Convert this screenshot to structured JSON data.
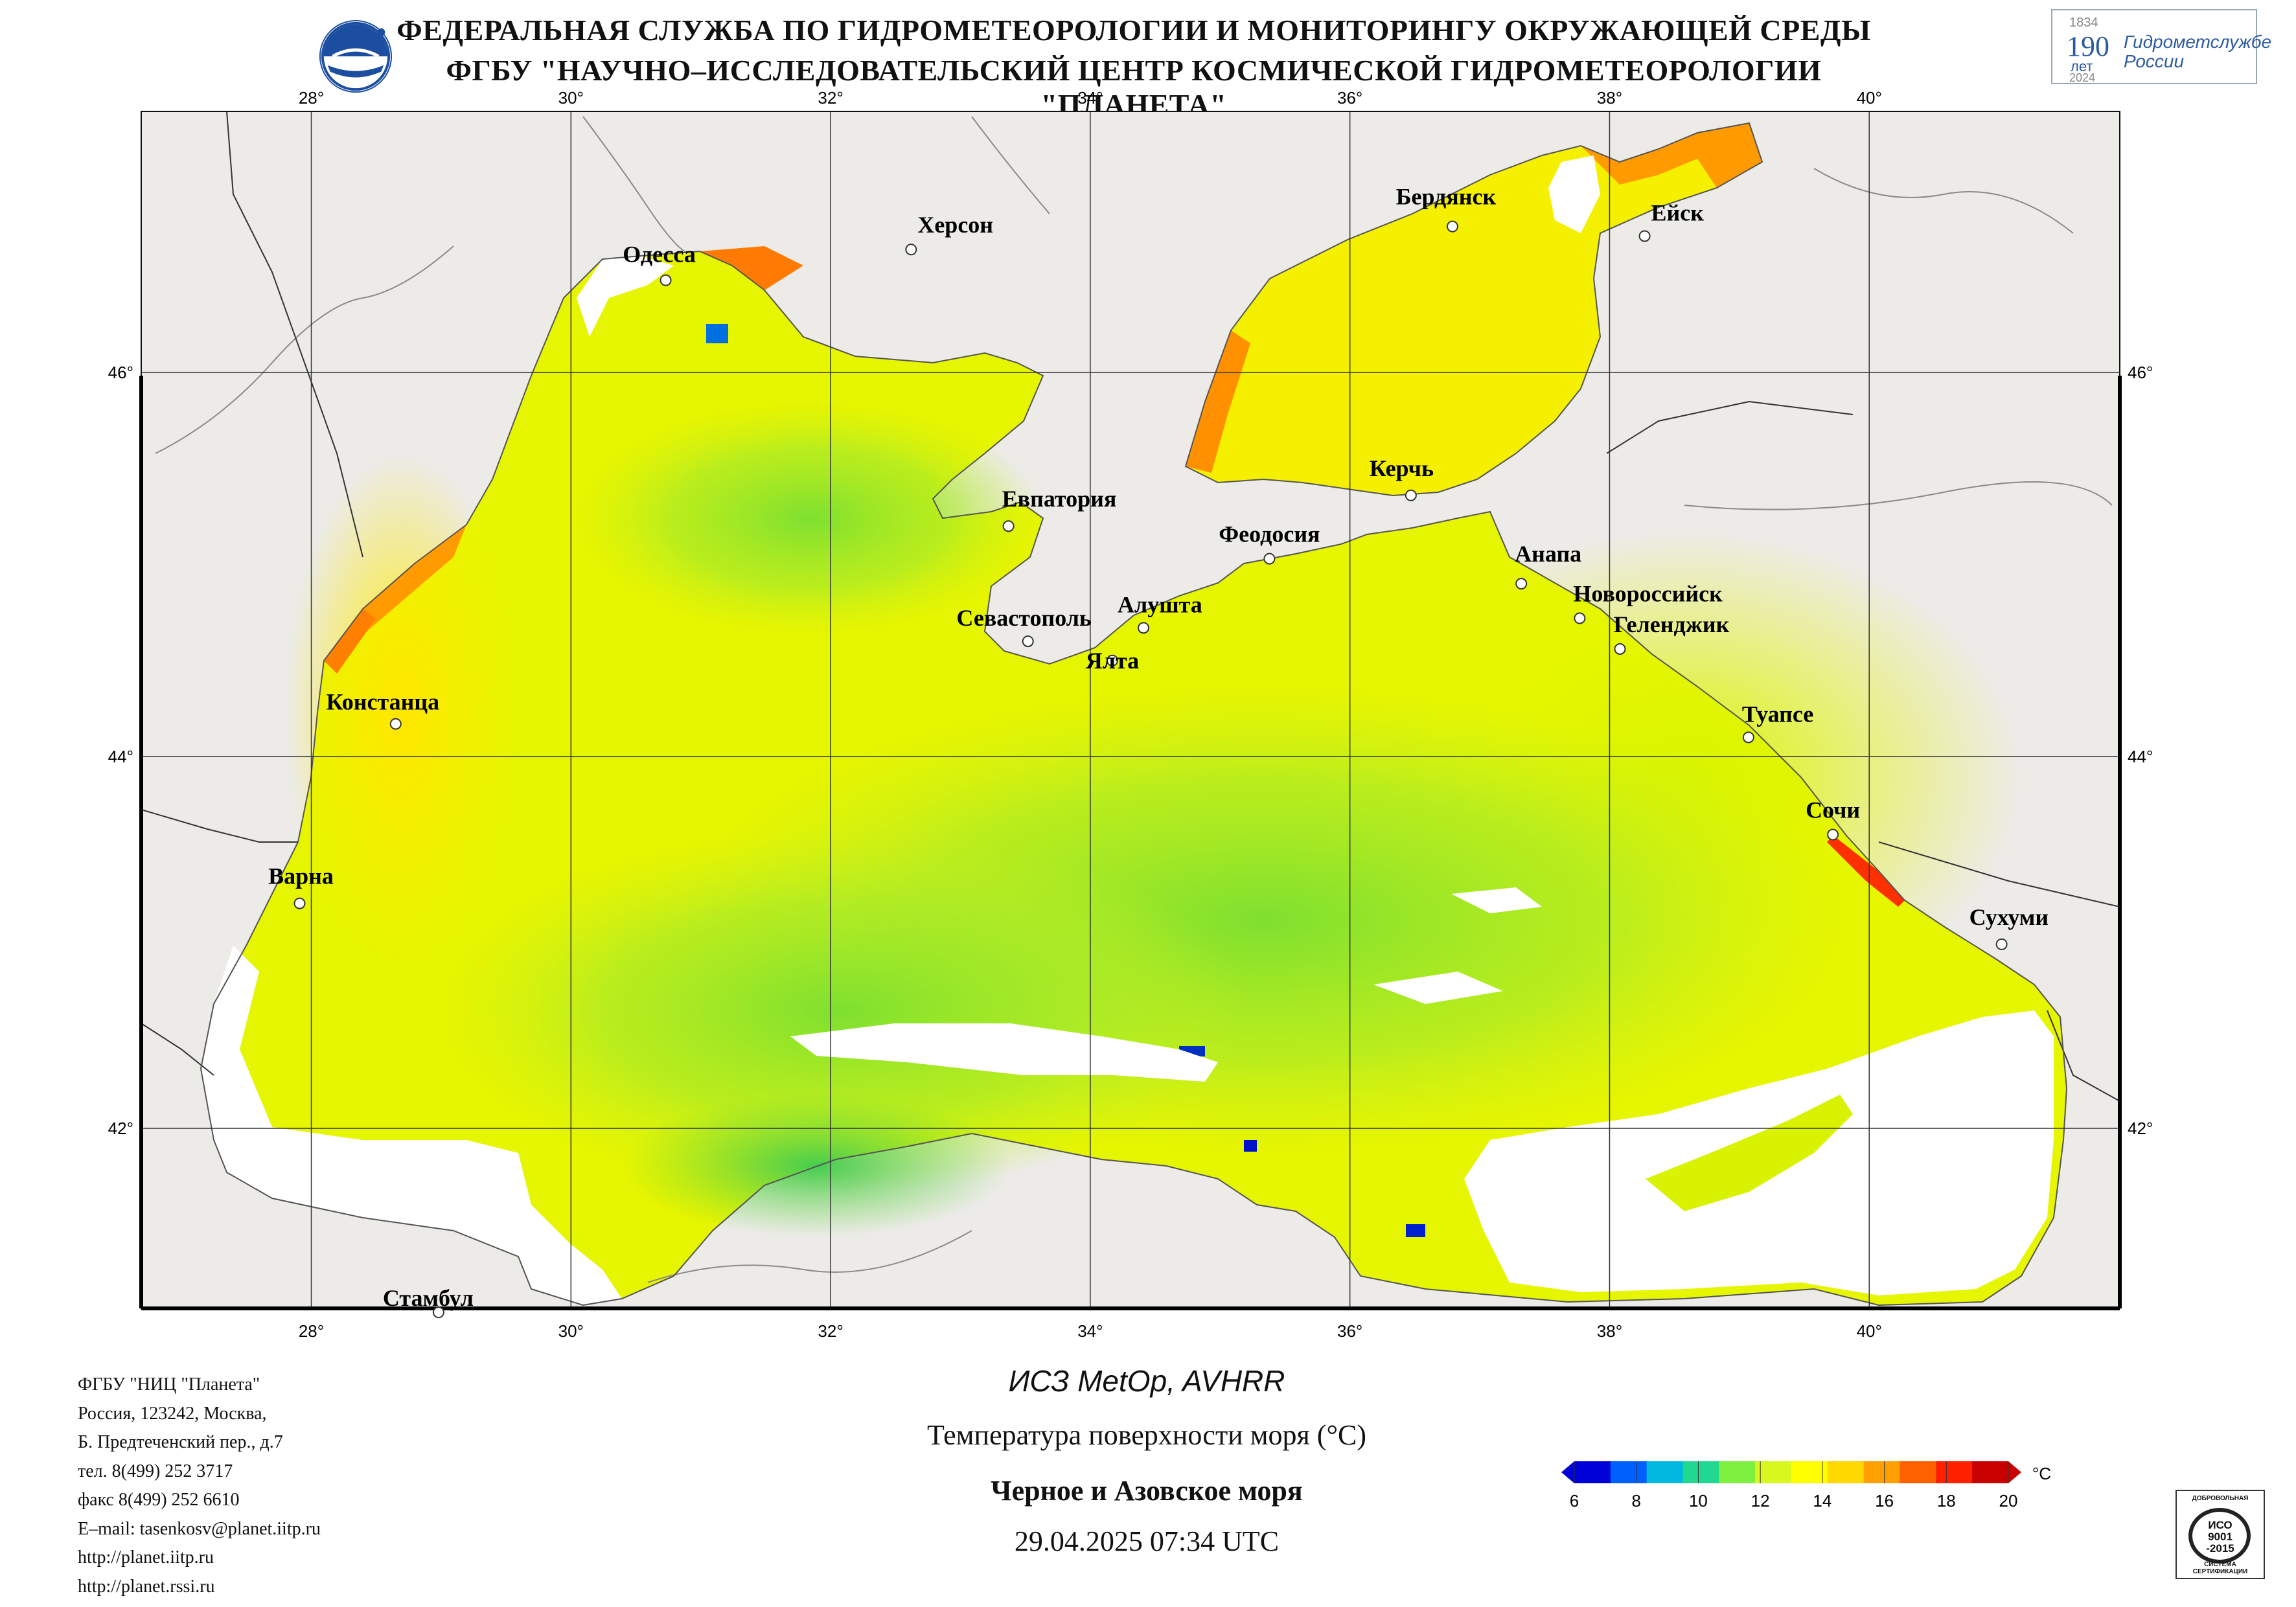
{
  "header": {
    "line1": "ФЕДЕРАЛЬНАЯ СЛУЖБА ПО ГИДРОМЕТЕОРОЛОГИИ И МОНИТОРИНГУ ОКРУЖАЮЩЕЙ СРЕДЫ",
    "line2": "ФГБУ \"НАУЧНО–ИССЛЕДОВАТЕЛЬСКИЙ ЦЕНТР КОСМИЧЕСКОЙ ГИДРОМЕТЕОРОЛОГИИ \"ПЛАНЕТА\""
  },
  "badge": {
    "year_top": "1834",
    "number": "190",
    "let": "лет",
    "year_bottom": "2024",
    "name_line1": "Гидрометслужбе",
    "name_line2": "России"
  },
  "axes": {
    "lon_labels": [
      "28°",
      "30°",
      "32°",
      "34°",
      "36°",
      "38°",
      "40°"
    ],
    "lat_labels": [
      "46°",
      "44°",
      "42°"
    ]
  },
  "cities": [
    {
      "name": "Одесса",
      "lon": 30.73,
      "lat": 46.48
    },
    {
      "name": "Херсон",
      "lon": 32.62,
      "lat": 46.64
    },
    {
      "name": "Бердянск",
      "lon": 36.79,
      "lat": 46.76
    },
    {
      "name": "Ейск",
      "lon": 38.27,
      "lat": 46.71
    },
    {
      "name": "Евпатория",
      "lon": 33.37,
      "lat": 45.2
    },
    {
      "name": "Керчь",
      "lon": 36.47,
      "lat": 45.36
    },
    {
      "name": "Феодосия",
      "lon": 35.38,
      "lat": 45.03
    },
    {
      "name": "Анапа",
      "lon": 37.32,
      "lat": 44.9
    },
    {
      "name": "Новороссийск",
      "lon": 37.77,
      "lat": 44.72
    },
    {
      "name": "Геленджик",
      "lon": 38.08,
      "lat": 44.56
    },
    {
      "name": "Алушта",
      "lon": 34.41,
      "lat": 44.67
    },
    {
      "name": "Севастополь",
      "lon": 33.52,
      "lat": 44.6
    },
    {
      "name": "Ялта",
      "lon": 34.17,
      "lat": 44.5
    },
    {
      "name": "Констанца",
      "lon": 28.65,
      "lat": 44.17
    },
    {
      "name": "Туапсе",
      "lon": 39.07,
      "lat": 44.1
    },
    {
      "name": "Сочи",
      "lon": 39.72,
      "lat": 43.58
    },
    {
      "name": "Варна",
      "lon": 27.91,
      "lat": 43.21
    },
    {
      "name": "Сухуми",
      "lon": 41.02,
      "lat": 42.99
    },
    {
      "name": "Стамбул",
      "lon": 28.98,
      "lat": 41.01
    }
  ],
  "info": [
    "ФГБУ \"НИЦ \"Планета\"",
    "Россия, 123242, Москва,",
    "Б. Предтеченский пер., д.7",
    "тел. 8(499) 252 3717",
    "факс 8(499) 252 6610",
    "E–mail: tasenkosv@planet.iitp.ru",
    "http://planet.iitp.ru",
    "http://planet.rssi.ru"
  ],
  "caption": {
    "sensor": "ИСЗ MetOp, AVHRR",
    "product": "Температура поверхности моря (°C)",
    "region": "Черное и Азовское моря",
    "datetime": "29.04.2025 07:34 UTC"
  },
  "colorbar": {
    "unit": "°C",
    "min": 6,
    "max": 20,
    "tick_labels": [
      "6",
      "8",
      "10",
      "12",
      "14",
      "16",
      "18",
      "20"
    ],
    "colors": [
      "#0000d8",
      "#0060ff",
      "#00b8e0",
      "#20d890",
      "#80f040",
      "#d8f820",
      "#ffff00",
      "#ffd800",
      "#ffa000",
      "#ff6000",
      "#ff2000",
      "#c80000"
    ]
  },
  "iso": {
    "top": "ДОБРОВОЛЬНАЯ",
    "mid1": "ИСО",
    "mid2": "9001",
    "mid3": "-2015",
    "bottom": "СИСТЕМА СЕРТИФИКАЦИИ"
  }
}
